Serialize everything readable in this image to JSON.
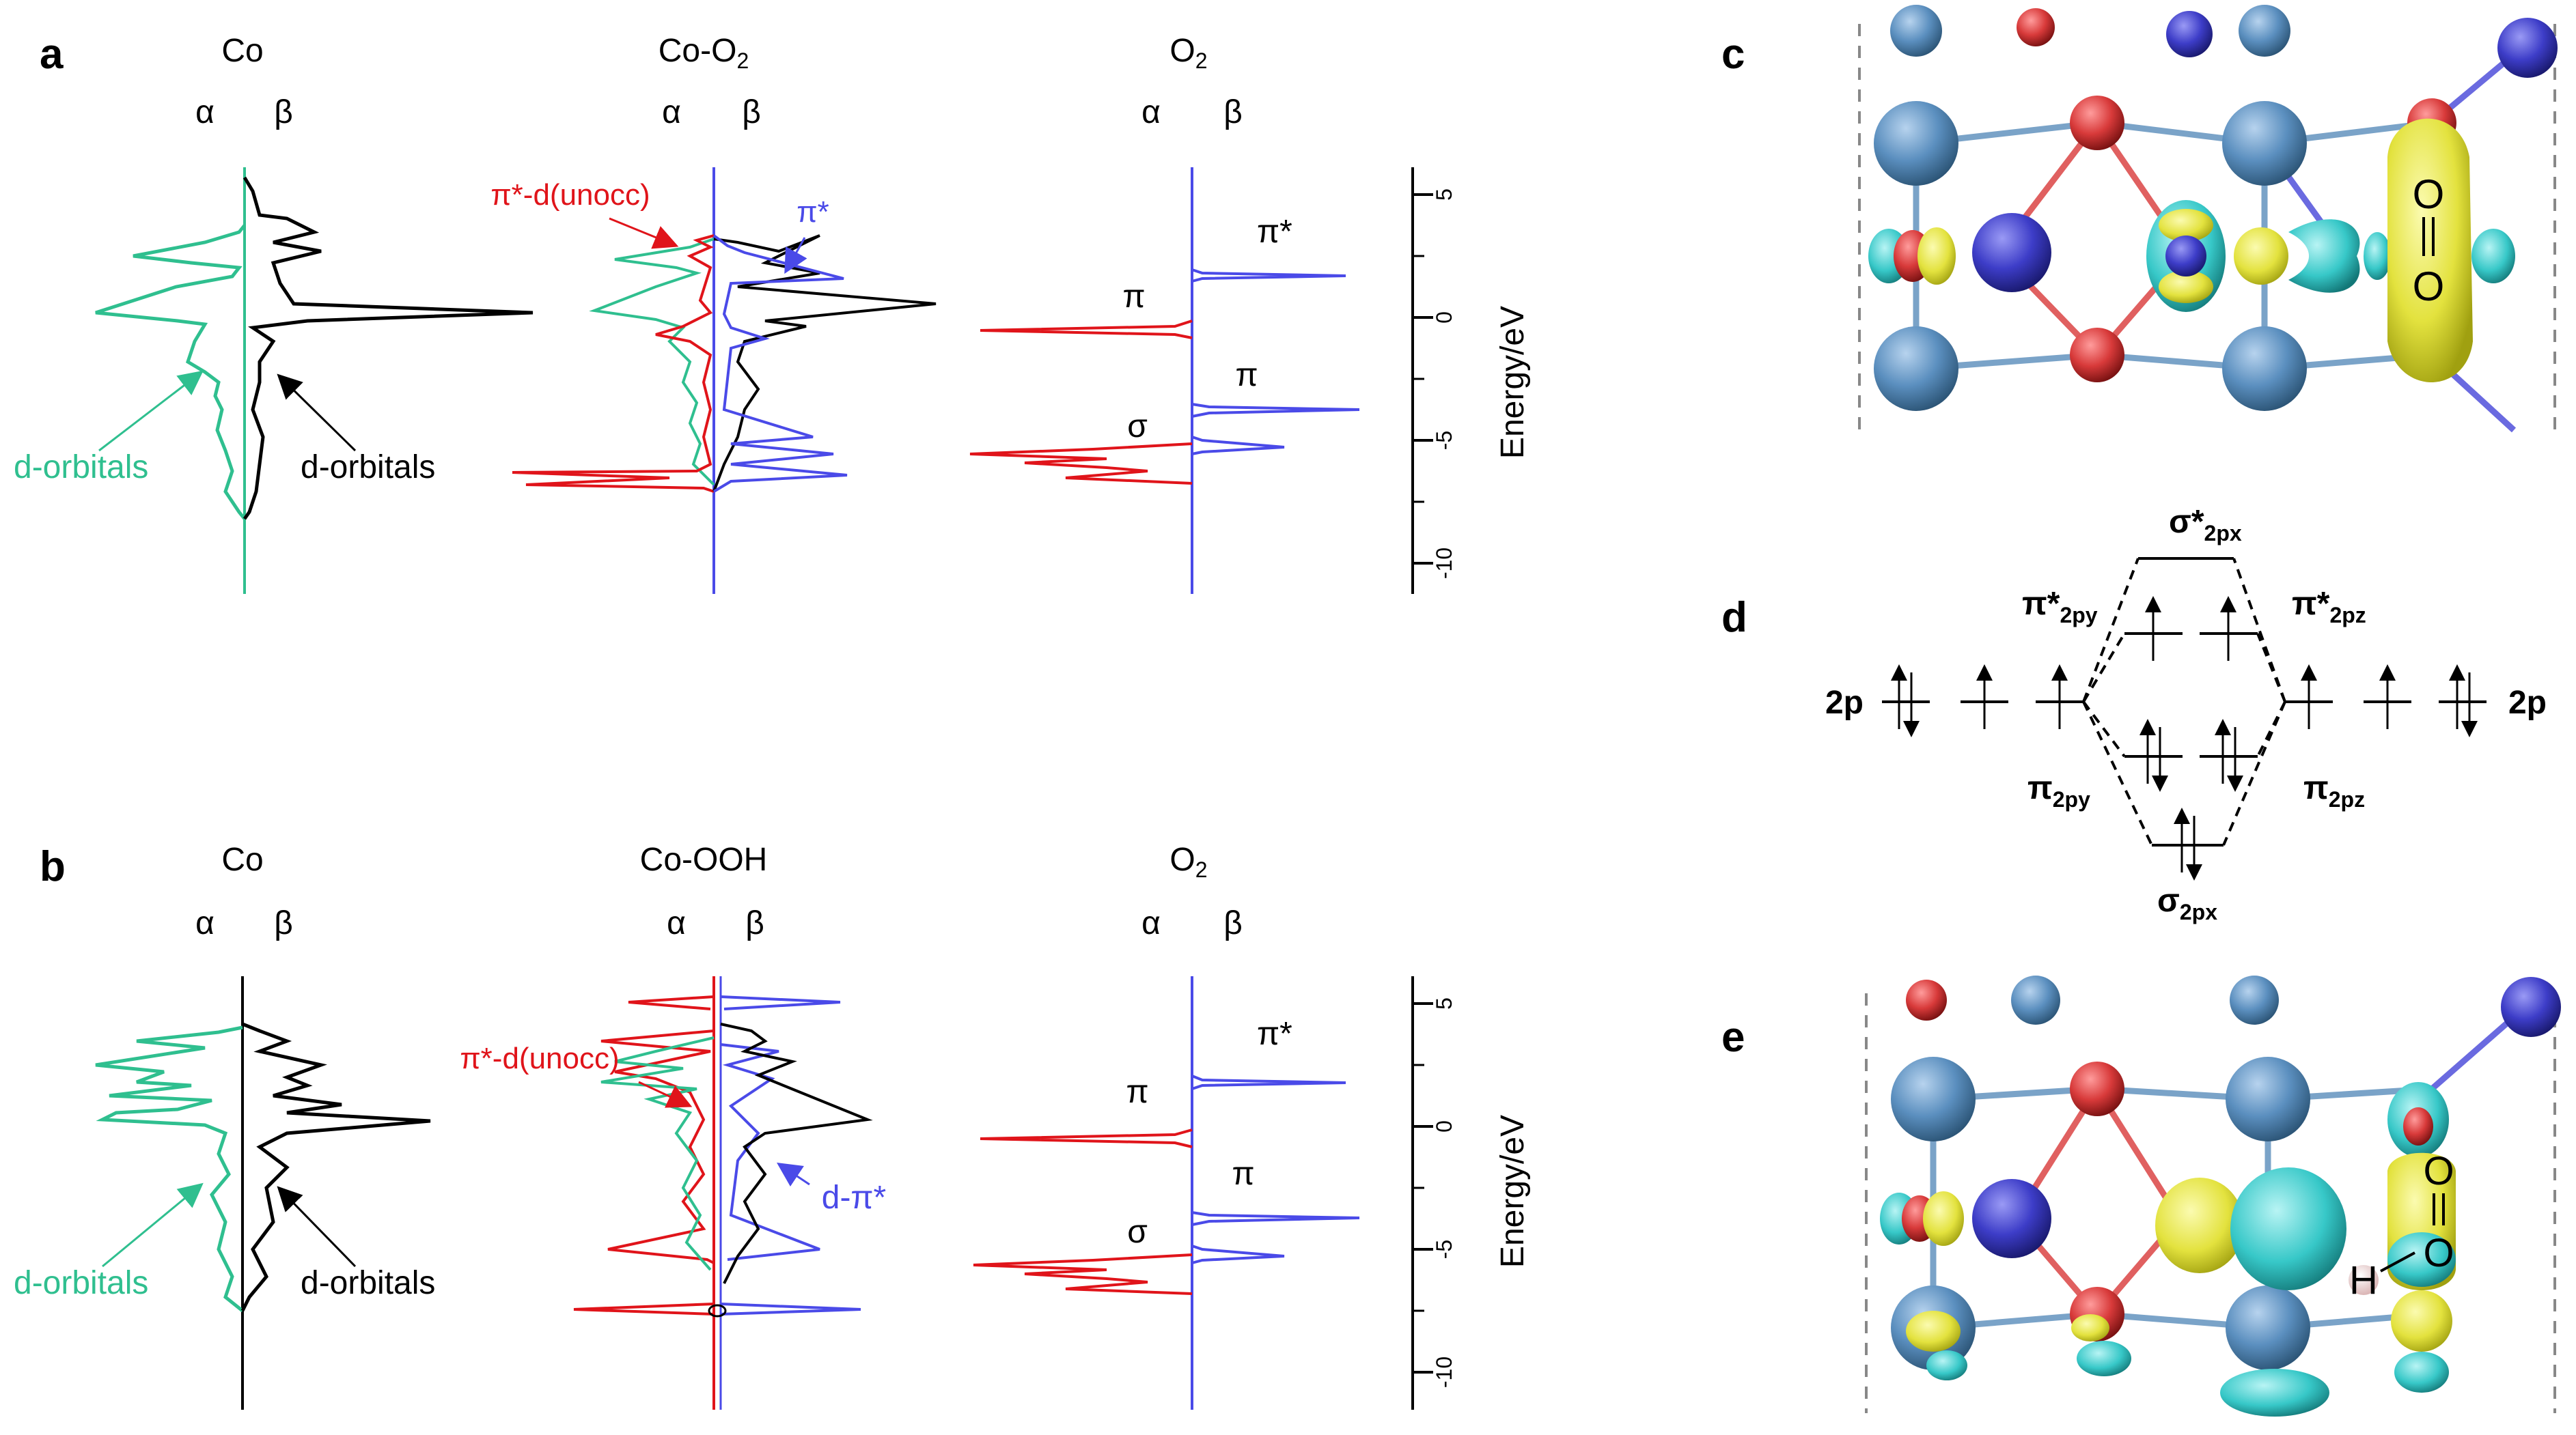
{
  "panels": {
    "a": {
      "letter": "a",
      "columns": [
        {
          "title": "Co",
          "alpha": "α",
          "beta": "β"
        },
        {
          "title": "Co-O",
          "title_sub": "2",
          "alpha": "α",
          "beta": "β"
        },
        {
          "title": "O",
          "title_sub": "2",
          "alpha": "α",
          "beta": "β"
        }
      ],
      "labels": {
        "pi_d": "π*-d(unocc)",
        "pi_star_co": "π*",
        "d_left": "d-orbitals",
        "d_right": "d-orbitals",
        "o2_pi_star": "π*",
        "o2_pi_a": "π",
        "o2_pi_b": "π",
        "o2_sigma": "σ"
      },
      "axis": {
        "label": "Energy/eV",
        "ticks": [
          "5",
          "0",
          "-5",
          "-10"
        ]
      }
    },
    "b": {
      "letter": "b",
      "columns": [
        {
          "title": "Co",
          "alpha": "α",
          "beta": "β"
        },
        {
          "title": "Co-OOH",
          "alpha": "α",
          "beta": "β"
        },
        {
          "title": "O",
          "title_sub": "2",
          "alpha": "α",
          "beta": "β"
        }
      ],
      "labels": {
        "pi_d": "π*-d(unocc)",
        "d_pi": "d-π*",
        "d_left": "d-orbitals",
        "d_right": "d-orbitals",
        "o2_pi_star": "π*",
        "o2_pi_a": "π",
        "o2_pi_b": "π",
        "o2_sigma": "σ"
      },
      "axis": {
        "label": "Energy/eV",
        "ticks": [
          "5",
          "0",
          "-5",
          "-10"
        ]
      }
    },
    "c": {
      "letter": "c",
      "atom1": "O",
      "atom2": "O"
    },
    "d": {
      "letter": "d",
      "left": "2p",
      "right": "2p",
      "sigma_star": {
        "main": "σ*",
        "sub": "2px"
      },
      "pi_star_y": {
        "main": "π*",
        "sub": "2py"
      },
      "pi_star_z": {
        "main": "π*",
        "sub": "2pz"
      },
      "pi_y": {
        "main": "π",
        "sub": "2py"
      },
      "pi_z": {
        "main": "π",
        "sub": "2pz"
      },
      "sigma": {
        "main": "σ",
        "sub": "2px"
      }
    },
    "e": {
      "letter": "e",
      "atom1": "O",
      "atom2": "O",
      "atom3": "H"
    }
  },
  "colors": {
    "alpha_dos": "#2fbf8f",
    "beta_dos": "#000000",
    "o_alpha": "#e0141a",
    "o_beta": "#4a4ae8",
    "co_atom": "#5b8fbf",
    "o_atom": "#d83a3a",
    "n_atom": "#3d3dc8",
    "iso_yellow": "#e7e84a",
    "iso_cyan": "#37c8c8"
  }
}
